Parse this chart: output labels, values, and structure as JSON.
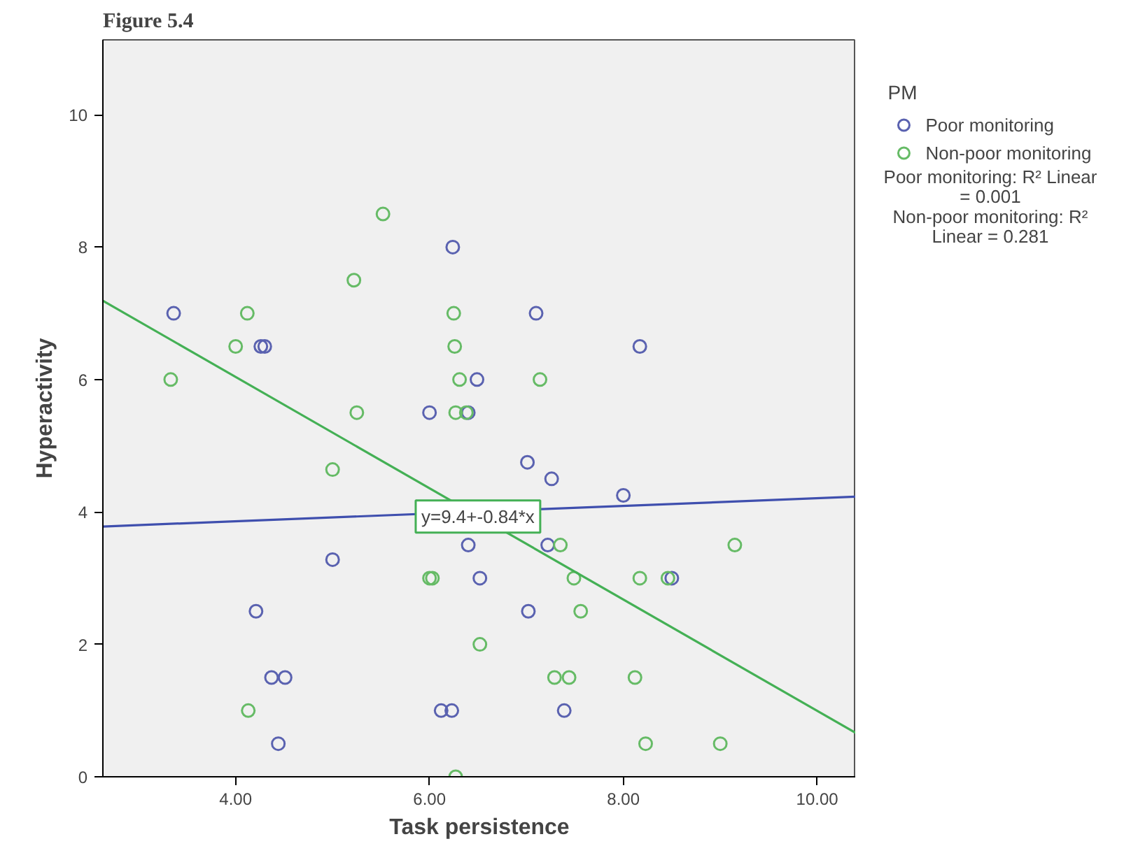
{
  "chart_data": {
    "type": "scatter",
    "title": "Figure 5.4",
    "xlabel": "Task persistence",
    "ylabel": "Hyperactivity",
    "legend_title": "PM",
    "legend": "right",
    "grid": false,
    "marker": "circle",
    "xlim": [
      2.63,
      10.4
    ],
    "ylim": [
      0,
      11.13
    ],
    "xticks": [
      {
        "value": 4,
        "label": "4.00"
      },
      {
        "value": 6,
        "label": "6.00"
      },
      {
        "value": 8,
        "label": "8.00"
      },
      {
        "value": 10,
        "label": "10.00"
      }
    ],
    "yticks": [
      0,
      2,
      4,
      6,
      8,
      10
    ],
    "series": [
      {
        "name": "Poor monitoring",
        "color": "#5a62b0",
        "x": [
          6.24,
          3.36,
          4.26,
          4.3,
          6.49,
          6.0,
          6.4,
          7.1,
          8.17,
          5.0,
          4.21,
          4.37,
          4.51,
          4.44,
          6.12,
          6.23,
          6.4,
          7.01,
          7.26,
          8.0,
          7.22,
          6.52,
          8.5,
          7.02,
          7.39
        ],
        "values": [
          8.0,
          7.0,
          6.5,
          6.5,
          6.0,
          5.5,
          5.5,
          7.0,
          6.5,
          3.28,
          2.5,
          1.5,
          1.5,
          0.5,
          1.0,
          1.0,
          3.5,
          4.75,
          4.5,
          4.25,
          3.5,
          3.0,
          3.0,
          2.5,
          1.0
        ]
      },
      {
        "name": "Non-poor monitoring",
        "color": "#66bb66",
        "x": [
          5.52,
          5.22,
          4.12,
          6.25,
          4.0,
          6.26,
          3.33,
          6.31,
          5.25,
          6.27,
          6.38,
          7.14,
          5.0,
          4.13,
          6.0,
          6.03,
          6.27,
          7.35,
          9.15,
          7.49,
          8.17,
          8.46,
          7.56,
          6.52,
          7.29,
          7.44,
          8.12,
          8.23,
          9.0
        ],
        "values": [
          8.5,
          7.5,
          7.0,
          7.0,
          6.5,
          6.5,
          6.0,
          6.0,
          5.5,
          5.5,
          5.5,
          6.0,
          4.64,
          1.0,
          3.0,
          3.0,
          0.0,
          3.5,
          3.5,
          3.0,
          3.0,
          3.0,
          2.5,
          2.0,
          1.5,
          1.5,
          1.5,
          0.5,
          0.5
        ]
      },
      {
        "type": "line",
        "marker": "none",
        "color": "#3f4fae",
        "x": [
          2.63,
          10.4
        ],
        "values": [
          3.78,
          4.23
        ]
      },
      {
        "type": "line",
        "marker": "none",
        "color": "#44b055",
        "x": [
          2.63,
          10.4
        ],
        "values": [
          7.19,
          0.66
        ]
      }
    ],
    "annotations": [
      {
        "text": "y=9.4+-0.84*x",
        "x": 6.5,
        "y": 3.93
      },
      "Poor monitoring: R² Linear = 0.001",
      "Non-poor monitoring: R² Linear = 0.281"
    ]
  }
}
